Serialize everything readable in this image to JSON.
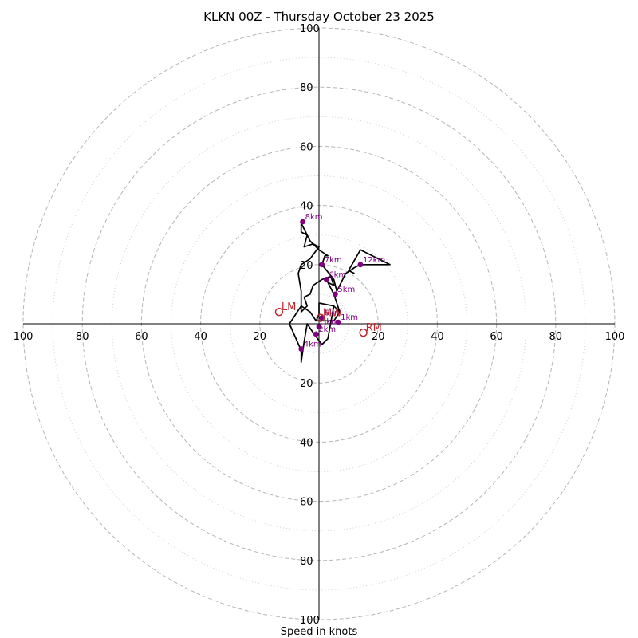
{
  "chart_data": {
    "type": "hodograph",
    "title": "KLKN 00Z - Thursday October 23 2025",
    "xlabel": "Speed in knots",
    "max_speed": 100,
    "ring_step": 10,
    "labeled_rings": [
      20,
      40,
      60,
      80,
      100
    ],
    "tick_labels": {
      "x": [
        "100",
        "80",
        "60",
        "40",
        "20",
        "20",
        "40",
        "60",
        "80",
        "100"
      ],
      "y_top": [
        "100",
        "80",
        "60",
        "40",
        "20"
      ],
      "y_bottom": [
        "20",
        "40",
        "60",
        "80",
        "100"
      ]
    },
    "hodograph_trace": [
      [
        -1,
        1
      ],
      [
        2,
        1
      ],
      [
        5,
        1
      ],
      [
        7,
        4
      ],
      [
        5,
        6
      ],
      [
        3,
        -5
      ],
      [
        1,
        -7
      ],
      [
        -2,
        -3
      ],
      [
        -4,
        0
      ],
      [
        -5,
        -6
      ],
      [
        -6,
        -13
      ],
      [
        -6,
        -9
      ],
      [
        -10,
        0
      ],
      [
        -6,
        6
      ],
      [
        -3,
        4
      ],
      [
        -1,
        1
      ],
      [
        0,
        3
      ],
      [
        0,
        7
      ],
      [
        5,
        6
      ],
      [
        7,
        4
      ],
      [
        5,
        10
      ],
      [
        3,
        14
      ],
      [
        5,
        13
      ],
      [
        4,
        16
      ],
      [
        1,
        15
      ],
      [
        -2,
        13
      ],
      [
        -3,
        10
      ],
      [
        -5,
        9
      ],
      [
        -4,
        6
      ],
      [
        -6,
        4
      ],
      [
        -6,
        11
      ],
      [
        -7,
        17
      ],
      [
        -6,
        20
      ],
      [
        -3,
        22
      ],
      [
        0,
        26
      ],
      [
        -2,
        27
      ],
      [
        -5,
        26
      ],
      [
        -4,
        30
      ],
      [
        -6,
        31
      ],
      [
        -6,
        33
      ],
      [
        -6,
        34
      ],
      [
        -3,
        28
      ],
      [
        0,
        25
      ],
      [
        3,
        23
      ],
      [
        2,
        23
      ],
      [
        1,
        20
      ],
      [
        5,
        15
      ],
      [
        6,
        11
      ],
      [
        9,
        17
      ],
      [
        12,
        19
      ],
      [
        14,
        20
      ],
      [
        24,
        20
      ],
      [
        14,
        25
      ],
      [
        10,
        18
      ],
      [
        12,
        17
      ]
    ],
    "height_markers": [
      {
        "label": "1km",
        "u": 6.5,
        "v": 0.5
      },
      {
        "label": "2km",
        "u": -1,
        "v": -3.5
      },
      {
        "label": "3km",
        "u": 0,
        "v": -1
      },
      {
        "label": "4km",
        "u": -6,
        "v": -8.5
      },
      {
        "label": "5km",
        "u": 5.5,
        "v": 10
      },
      {
        "label": "6km",
        "u": 2.5,
        "v": 15
      },
      {
        "label": "6km",
        "u": 1,
        "v": 2
      },
      {
        "label": "7km",
        "u": 1,
        "v": 20
      },
      {
        "label": "8km",
        "u": -5.5,
        "v": 34.5
      },
      {
        "label": "12km",
        "u": 14,
        "v": 20
      }
    ],
    "storm_motions": [
      {
        "label": "LM",
        "u": -13.5,
        "v": 4
      },
      {
        "label": "RM",
        "u": 15,
        "v": -3
      },
      {
        "label": "MW",
        "u": 0.5,
        "v": 2
      }
    ],
    "colors": {
      "trace": "#000000",
      "markers": "#800080",
      "storm_motion": "#c0282d",
      "rings": "#b5b5b5"
    }
  }
}
